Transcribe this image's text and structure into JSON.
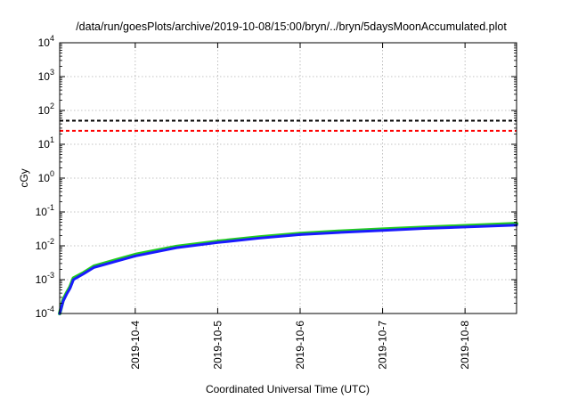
{
  "chart_data": {
    "type": "line",
    "title": "/data/run/goesPlots/archive/2019-10-08/15:00/bryn/../bryn/5daysMoonAccumulated.plot",
    "xlabel": "Coordinated Universal Time (UTC)",
    "ylabel": "cGy",
    "x_axis": "time",
    "xlim": [
      "2019-10-03 02:00",
      "2019-10-08 15:00"
    ],
    "x_ticks": [
      "2019-10-4",
      "2019-10-5",
      "2019-10-6",
      "2019-10-7",
      "2019-10-8"
    ],
    "y_scale": "log",
    "ylim": [
      0.0001,
      10000
    ],
    "y_ticks": [
      {
        "value": 0.0001,
        "base": "10",
        "exp": "-4"
      },
      {
        "value": 0.001,
        "base": "10",
        "exp": "-3"
      },
      {
        "value": 0.01,
        "base": "10",
        "exp": "-2"
      },
      {
        "value": 0.1,
        "base": "10",
        "exp": "-1"
      },
      {
        "value": 1,
        "base": "10",
        "exp": "0"
      },
      {
        "value": 10,
        "base": "10",
        "exp": "1"
      },
      {
        "value": 100,
        "base": "10",
        "exp": "2"
      },
      {
        "value": 1000,
        "base": "10",
        "exp": "3"
      },
      {
        "value": 10000,
        "base": "10",
        "exp": "4"
      }
    ],
    "grid": true,
    "reference_lines": [
      {
        "y": 50,
        "color": "#000000",
        "style": "dashed"
      },
      {
        "y": 25,
        "color": "#ff0000",
        "style": "dashed"
      }
    ],
    "series": [
      {
        "color": "#22cc22",
        "x": [
          "2019-10-03 02:00",
          "2019-10-03 02:30",
          "2019-10-03 03:00",
          "2019-10-03 04:00",
          "2019-10-03 05:00",
          "2019-10-03 06:00",
          "2019-10-03 09:00",
          "2019-10-03 12:00",
          "2019-10-04 00:00",
          "2019-10-04 12:00",
          "2019-10-05 00:00",
          "2019-10-05 12:00",
          "2019-10-06 00:00",
          "2019-10-06 12:00",
          "2019-10-07 00:00",
          "2019-10-07 12:00",
          "2019-10-08 00:00",
          "2019-10-08 15:00"
        ],
        "values": [
          0.0001,
          0.00016,
          0.00025,
          0.0004,
          0.0006,
          0.0011,
          0.0016,
          0.0025,
          0.0055,
          0.0095,
          0.0135,
          0.018,
          0.023,
          0.027,
          0.031,
          0.035,
          0.039,
          0.045
        ]
      },
      {
        "color": "#1a1aff",
        "x": [
          "2019-10-03 02:00",
          "2019-10-03 02:30",
          "2019-10-03 03:00",
          "2019-10-03 04:00",
          "2019-10-03 05:00",
          "2019-10-03 06:00",
          "2019-10-03 09:00",
          "2019-10-03 12:00",
          "2019-10-04 00:00",
          "2019-10-04 12:00",
          "2019-10-05 00:00",
          "2019-10-05 12:00",
          "2019-10-06 00:00",
          "2019-10-06 12:00",
          "2019-10-07 00:00",
          "2019-10-07 12:00",
          "2019-10-08 00:00",
          "2019-10-08 15:00"
        ],
        "values": [
          0.0001,
          0.00015,
          0.00023,
          0.00037,
          0.00055,
          0.001,
          0.0015,
          0.0023,
          0.005,
          0.0088,
          0.0125,
          0.0168,
          0.0215,
          0.025,
          0.0285,
          0.0325,
          0.036,
          0.041
        ]
      }
    ]
  }
}
